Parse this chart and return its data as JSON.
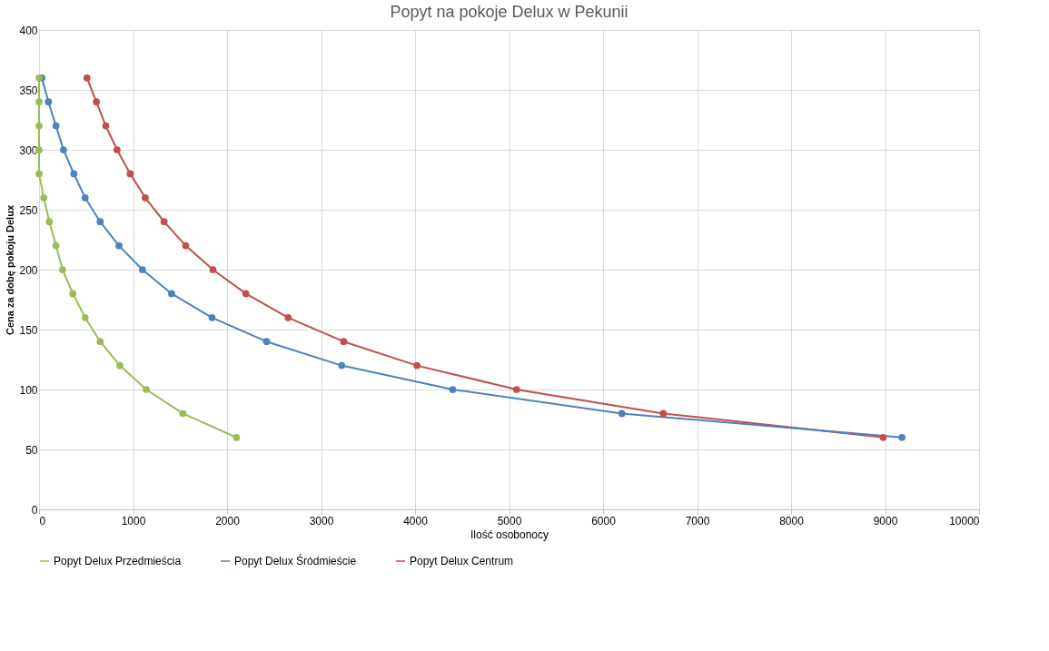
{
  "chart_data": {
    "type": "line",
    "title": "Popyt na pokoje Delux w Pekunii",
    "xlabel": "Ilość osobonocy",
    "ylabel": "Cena za dobę pokoju Delux",
    "xlim": [
      0,
      10000
    ],
    "xticks": [
      0,
      1000,
      2000,
      3000,
      4000,
      5000,
      6000,
      7000,
      8000,
      9000,
      10000
    ],
    "ylim": [
      0,
      400
    ],
    "yticks": [
      0,
      50,
      100,
      150,
      200,
      250,
      300,
      350,
      400
    ],
    "grid": true,
    "legend": "bottom",
    "marker": "circle",
    "line_style": "solid",
    "series": [
      {
        "name": "Popyt Delux Przedmieścia",
        "color": "#9bbb59",
        "x": [
          0,
          0,
          0,
          0,
          0,
          50,
          110,
          180,
          250,
          360,
          490,
          650,
          860,
          1140,
          1530,
          2100
        ],
        "values": [
          360,
          340,
          320,
          300,
          280,
          260,
          240,
          220,
          200,
          180,
          160,
          140,
          120,
          100,
          80,
          60
        ]
      },
      {
        "name": "Popyt Delux Śródmieście",
        "color": "#4f81bd",
        "x": [
          30,
          100,
          180,
          260,
          370,
          490,
          650,
          850,
          1100,
          1410,
          1840,
          2420,
          3220,
          4400,
          6200,
          9180
        ],
        "values": [
          360,
          340,
          320,
          300,
          280,
          260,
          240,
          220,
          200,
          180,
          160,
          140,
          120,
          100,
          80,
          60
        ]
      },
      {
        "name": "Popyt Delux Centrum",
        "color": "#c0504d",
        "x": [
          510,
          610,
          710,
          830,
          970,
          1130,
          1330,
          1560,
          1850,
          2200,
          2650,
          3240,
          4020,
          5080,
          6640,
          8980
        ],
        "values": [
          360,
          340,
          320,
          300,
          280,
          260,
          240,
          220,
          200,
          180,
          160,
          140,
          120,
          100,
          80,
          60
        ]
      }
    ]
  }
}
